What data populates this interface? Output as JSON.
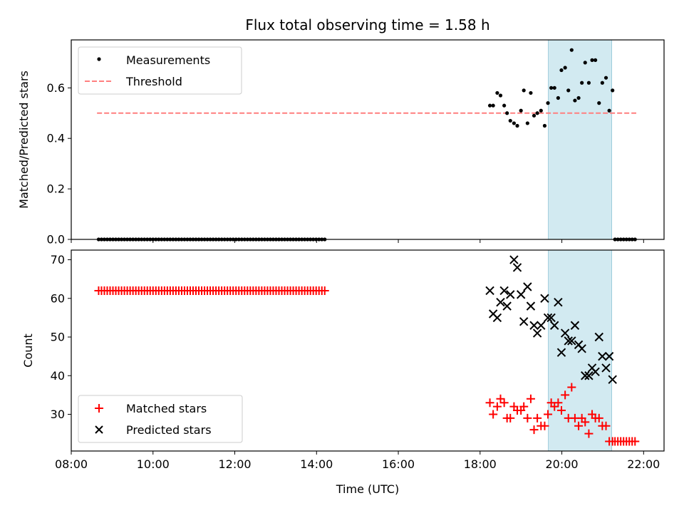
{
  "chart_data": [
    {
      "type": "scatter",
      "title": "Flux total observing time = 1.58 h",
      "ylabel": "Matched/Predicted stars",
      "xlabel": "",
      "xlim": [
        8.0,
        22.5
      ],
      "ylim": [
        0.0,
        0.79
      ],
      "x_ticks": [
        8,
        10,
        12,
        14,
        16,
        18,
        20,
        22
      ],
      "y_ticks": [
        0.0,
        0.2,
        0.4,
        0.6
      ],
      "y_tick_labels": [
        "0.0",
        "0.2",
        "0.4",
        "0.6"
      ],
      "highlight_span": [
        19.67,
        21.22
      ],
      "highlight_color": "#add8e6",
      "threshold": {
        "value": 0.5,
        "x_range": [
          8.63,
          21.82
        ],
        "color": "#ff7f7f"
      },
      "legend": {
        "position": "top-left",
        "entries": [
          "Measurements",
          "Threshold"
        ]
      },
      "series": [
        {
          "name": "Measurements",
          "color": "#000000",
          "marker": "dot",
          "x": [
            8.67,
            8.74,
            8.81,
            8.88,
            8.95,
            9.02,
            9.09,
            9.16,
            9.23,
            9.3,
            9.37,
            9.44,
            9.51,
            9.58,
            9.65,
            9.72,
            9.79,
            9.86,
            9.93,
            10.0,
            10.07,
            10.14,
            10.21,
            10.28,
            10.35,
            10.42,
            10.49,
            10.56,
            10.63,
            10.7,
            10.77,
            10.84,
            10.91,
            10.98,
            11.05,
            11.12,
            11.19,
            11.26,
            11.33,
            11.4,
            11.47,
            11.54,
            11.61,
            11.68,
            11.75,
            11.82,
            11.89,
            11.96,
            12.03,
            12.1,
            12.17,
            12.24,
            12.31,
            12.38,
            12.45,
            12.52,
            12.59,
            12.66,
            12.73,
            12.8,
            12.87,
            12.94,
            13.01,
            13.08,
            13.15,
            13.22,
            13.29,
            13.36,
            13.43,
            13.5,
            13.57,
            13.64,
            13.71,
            13.78,
            13.85,
            13.92,
            13.99,
            14.06,
            14.13,
            14.2,
            18.24,
            18.32,
            18.42,
            18.5,
            18.59,
            18.66,
            18.74,
            18.83,
            18.91,
            19.0,
            19.07,
            19.16,
            19.24,
            19.32,
            19.4,
            19.49,
            19.58,
            19.66,
            19.74,
            19.82,
            19.91,
            19.99,
            20.08,
            20.16,
            20.24,
            20.32,
            20.41,
            20.49,
            20.57,
            20.66,
            20.74,
            20.82,
            20.91,
            20.99,
            21.08,
            21.16,
            21.24,
            21.3,
            21.37,
            21.44,
            21.51,
            21.58,
            21.65,
            21.72,
            21.79
          ],
          "y": [
            0,
            0,
            0,
            0,
            0,
            0,
            0,
            0,
            0,
            0,
            0,
            0,
            0,
            0,
            0,
            0,
            0,
            0,
            0,
            0,
            0,
            0,
            0,
            0,
            0,
            0,
            0,
            0,
            0,
            0,
            0,
            0,
            0,
            0,
            0,
            0,
            0,
            0,
            0,
            0,
            0,
            0,
            0,
            0,
            0,
            0,
            0,
            0,
            0,
            0,
            0,
            0,
            0,
            0,
            0,
            0,
            0,
            0,
            0,
            0,
            0,
            0,
            0,
            0,
            0,
            0,
            0,
            0,
            0,
            0,
            0,
            0,
            0,
            0,
            0,
            0,
            0,
            0,
            0,
            0,
            0.53,
            0.53,
            0.58,
            0.57,
            0.53,
            0.5,
            0.47,
            0.46,
            0.45,
            0.51,
            0.59,
            0.46,
            0.58,
            0.49,
            0.5,
            0.51,
            0.45,
            0.54,
            0.6,
            0.6,
            0.56,
            0.67,
            0.68,
            0.59,
            0.75,
            0.55,
            0.56,
            0.62,
            0.7,
            0.62,
            0.71,
            0.71,
            0.54,
            0.62,
            0.64,
            0.51,
            0.59,
            0,
            0,
            0,
            0,
            0,
            0,
            0,
            0
          ]
        }
      ]
    },
    {
      "type": "scatter",
      "title": "",
      "ylabel": "Count",
      "xlabel": "Time (UTC)",
      "xlim": [
        8.0,
        22.5
      ],
      "ylim": [
        20.5,
        72.5
      ],
      "x_ticks": [
        8,
        10,
        12,
        14,
        16,
        18,
        20,
        22
      ],
      "x_tick_labels": [
        "08:00",
        "10:00",
        "12:00",
        "14:00",
        "16:00",
        "18:00",
        "20:00",
        "22:00"
      ],
      "y_ticks": [
        30,
        40,
        50,
        60,
        70
      ],
      "y_tick_labels": [
        "30",
        "40",
        "50",
        "60",
        "70"
      ],
      "highlight_span": [
        19.67,
        21.22
      ],
      "highlight_color": "#add8e6",
      "legend": {
        "position": "bottom-left",
        "entries": [
          "Matched stars",
          "Predicted stars"
        ]
      },
      "series": [
        {
          "name": "Matched stars",
          "color": "#ff0000",
          "marker": "plus",
          "x": [
            8.67,
            8.74,
            8.81,
            8.88,
            8.95,
            9.02,
            9.09,
            9.16,
            9.23,
            9.3,
            9.37,
            9.44,
            9.51,
            9.58,
            9.65,
            9.72,
            9.79,
            9.86,
            9.93,
            10.0,
            10.07,
            10.14,
            10.21,
            10.28,
            10.35,
            10.42,
            10.49,
            10.56,
            10.63,
            10.7,
            10.77,
            10.84,
            10.91,
            10.98,
            11.05,
            11.12,
            11.19,
            11.26,
            11.33,
            11.4,
            11.47,
            11.54,
            11.61,
            11.68,
            11.75,
            11.82,
            11.89,
            11.96,
            12.03,
            12.1,
            12.17,
            12.24,
            12.31,
            12.38,
            12.45,
            12.52,
            12.59,
            12.66,
            12.73,
            12.8,
            12.87,
            12.94,
            13.01,
            13.08,
            13.15,
            13.22,
            13.29,
            13.36,
            13.43,
            13.5,
            13.57,
            13.64,
            13.71,
            13.78,
            13.85,
            13.92,
            13.99,
            14.06,
            14.13,
            14.2,
            18.24,
            18.32,
            18.42,
            18.5,
            18.59,
            18.66,
            18.74,
            18.83,
            18.91,
            19.0,
            19.07,
            19.16,
            19.24,
            19.32,
            19.4,
            19.49,
            19.58,
            19.66,
            19.74,
            19.82,
            19.91,
            19.99,
            20.08,
            20.16,
            20.24,
            20.32,
            20.41,
            20.49,
            20.57,
            20.66,
            20.74,
            20.82,
            20.91,
            20.99,
            21.08,
            21.16,
            21.24,
            21.3,
            21.37,
            21.44,
            21.51,
            21.58,
            21.65,
            21.72,
            21.79
          ],
          "y": [
            62,
            62,
            62,
            62,
            62,
            62,
            62,
            62,
            62,
            62,
            62,
            62,
            62,
            62,
            62,
            62,
            62,
            62,
            62,
            62,
            62,
            62,
            62,
            62,
            62,
            62,
            62,
            62,
            62,
            62,
            62,
            62,
            62,
            62,
            62,
            62,
            62,
            62,
            62,
            62,
            62,
            62,
            62,
            62,
            62,
            62,
            62,
            62,
            62,
            62,
            62,
            62,
            62,
            62,
            62,
            62,
            62,
            62,
            62,
            62,
            62,
            62,
            62,
            62,
            62,
            62,
            62,
            62,
            62,
            62,
            62,
            62,
            62,
            62,
            62,
            62,
            62,
            62,
            62,
            62,
            33,
            30,
            32,
            34,
            33,
            29,
            29,
            32,
            31,
            31,
            32,
            29,
            34,
            26,
            29,
            27,
            27,
            30,
            33,
            32,
            33,
            31,
            35,
            29,
            37,
            29,
            27,
            29,
            28,
            25,
            30,
            29,
            29,
            27,
            27,
            23,
            23,
            23,
            23,
            23,
            23,
            23,
            23,
            23,
            23
          ]
        },
        {
          "name": "Predicted stars",
          "color": "#000000",
          "marker": "x",
          "x": [
            18.24,
            18.32,
            18.42,
            18.5,
            18.59,
            18.66,
            18.74,
            18.83,
            18.91,
            19.0,
            19.07,
            19.16,
            19.24,
            19.32,
            19.4,
            19.49,
            19.58,
            19.66,
            19.74,
            19.82,
            19.91,
            19.99,
            20.08,
            20.16,
            20.24,
            20.32,
            20.41,
            20.49,
            20.57,
            20.66,
            20.74,
            20.82,
            20.91,
            20.99,
            21.08,
            21.16,
            21.24
          ],
          "y": [
            62,
            56,
            55,
            59,
            62,
            58,
            61,
            70,
            68,
            61,
            54,
            63,
            58,
            53,
            51,
            53,
            60,
            55,
            55,
            53,
            59,
            46,
            51,
            49,
            49,
            53,
            48,
            47,
            40,
            40,
            42,
            41,
            50,
            45,
            42,
            45,
            39
          ]
        }
      ]
    }
  ]
}
